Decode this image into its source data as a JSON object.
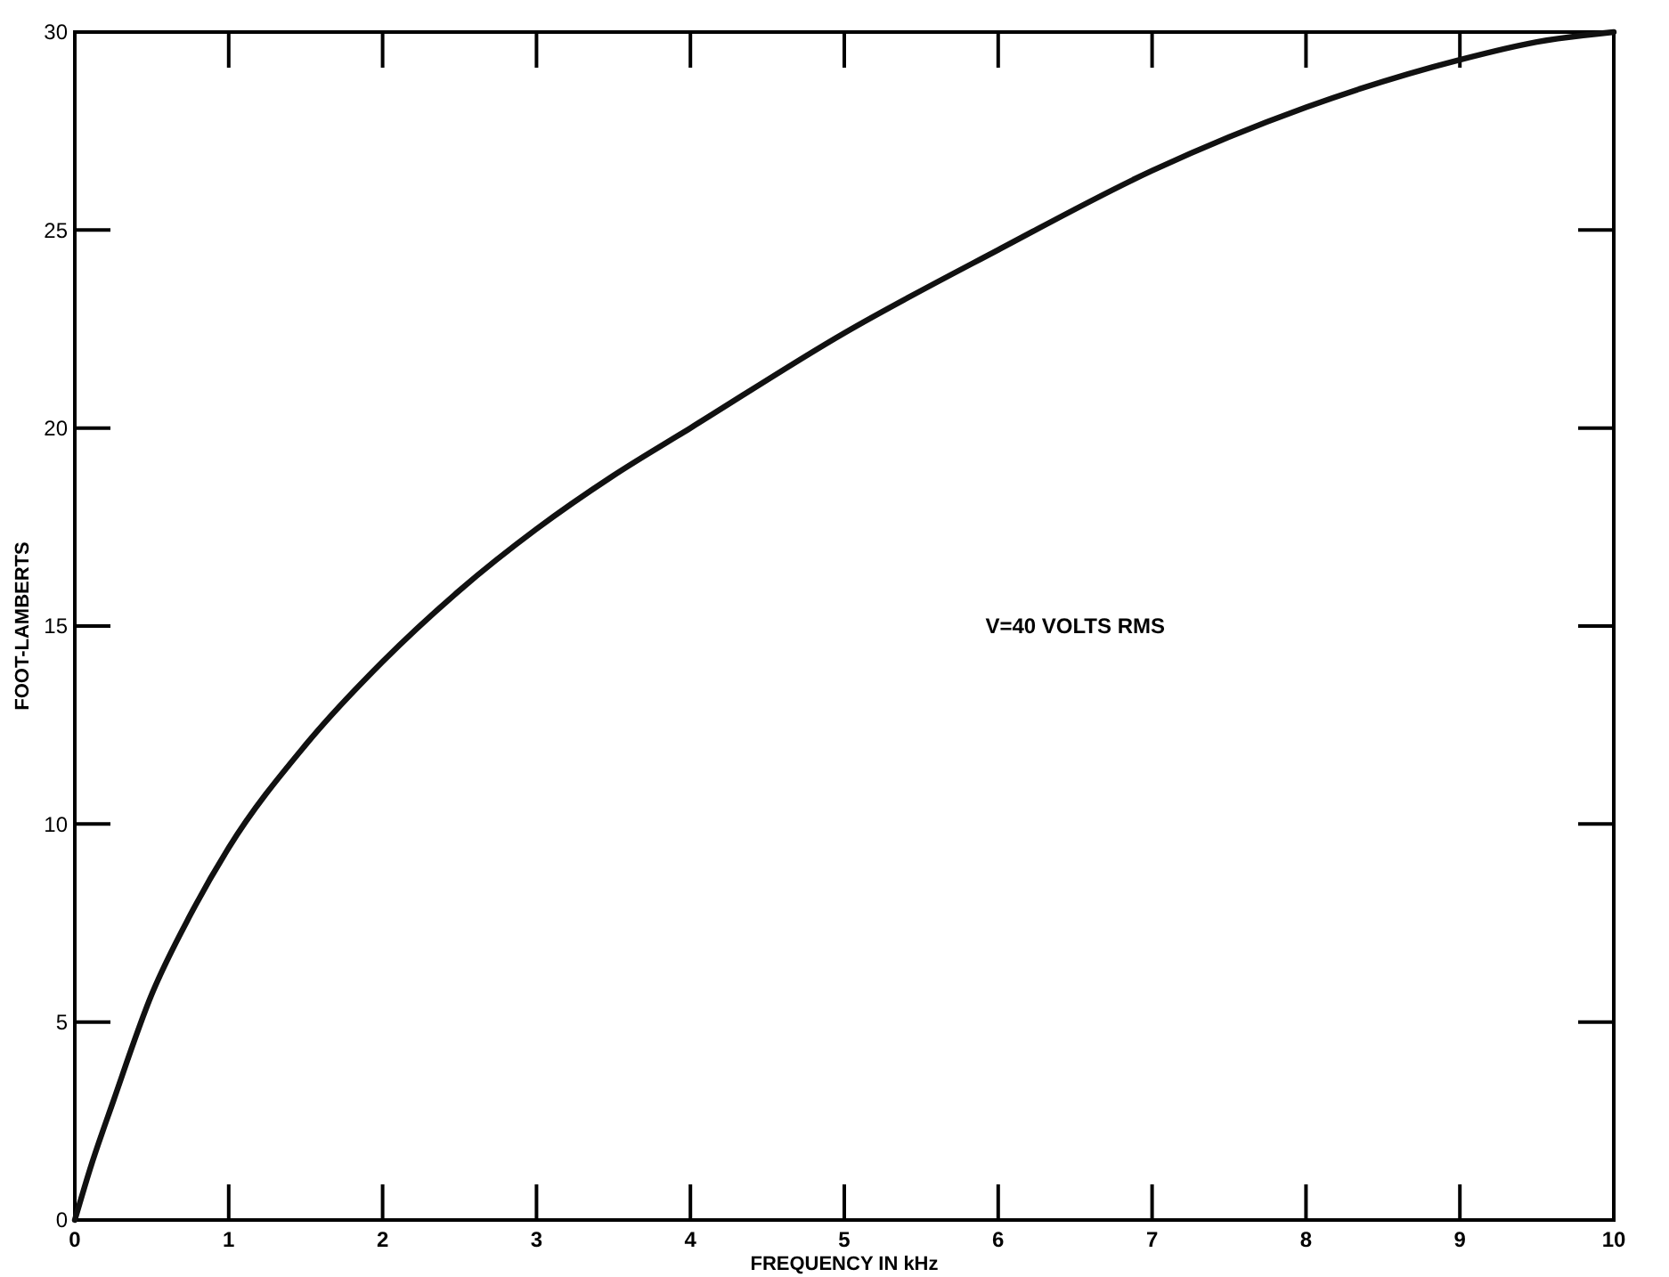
{
  "chart_data": {
    "type": "line",
    "xlabel": "FREQUENCY IN kHz",
    "ylabel": "FOOT-LAMBERTS",
    "annotations": [
      "V=40 VOLTS RMS"
    ],
    "xlim": [
      0,
      10
    ],
    "xticks": [
      0,
      1,
      2,
      3,
      4,
      5,
      6,
      7,
      8,
      9,
      10
    ],
    "ylim": [
      0,
      30
    ],
    "yticks": [
      0,
      5,
      10,
      15,
      20,
      25,
      30
    ],
    "x": [
      0,
      0.1,
      0.25,
      0.5,
      0.75,
      1,
      1.5,
      2,
      2.5,
      3,
      3.5,
      4,
      5,
      6,
      7,
      8,
      9,
      9.5,
      10
    ],
    "series": [
      {
        "color": "#111111",
        "values": [
          0,
          1.3,
          3.0,
          5.7,
          7.7,
          9.4,
          12.0,
          14.1,
          15.9,
          17.45,
          18.8,
          20.0,
          22.4,
          24.5,
          26.5,
          28.1,
          29.3,
          29.75,
          30
        ]
      }
    ],
    "marker": "none",
    "line_style": "solid"
  }
}
